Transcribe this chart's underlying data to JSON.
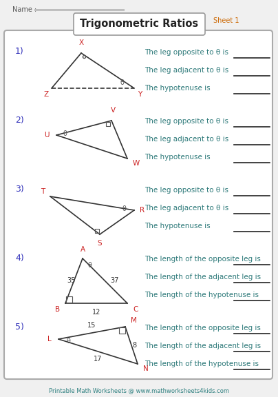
{
  "title": "Trigonometric Ratios",
  "sheet": "Sheet 1",
  "name_label": "Name :",
  "bg_color": "#f5f5f5",
  "footer": "Printable Math Worksheets @ www.mathworksheets4kids.com",
  "problems": [
    {
      "num": "1)",
      "questions": [
        "The leg opposite to θ is",
        "The leg adjacent to θ is",
        "The hypotenuse is"
      ]
    },
    {
      "num": "2)",
      "questions": [
        "The leg opposite to θ is",
        "The leg adjacent to θ is",
        "The hypotenuse is"
      ]
    },
    {
      "num": "3)",
      "questions": [
        "The leg opposite to θ is",
        "The leg adjacent to θ is",
        "The hypotenuse is"
      ]
    },
    {
      "num": "4)",
      "questions": [
        "The length of the opposite leg is",
        "The length of the adjacent leg is",
        "The length of the hypotenuse is"
      ]
    },
    {
      "num": "5)",
      "questions": [
        "The length of the opposite leg is",
        "The length of the adjacent leg is",
        "The length of the hypotenuse is"
      ]
    }
  ]
}
